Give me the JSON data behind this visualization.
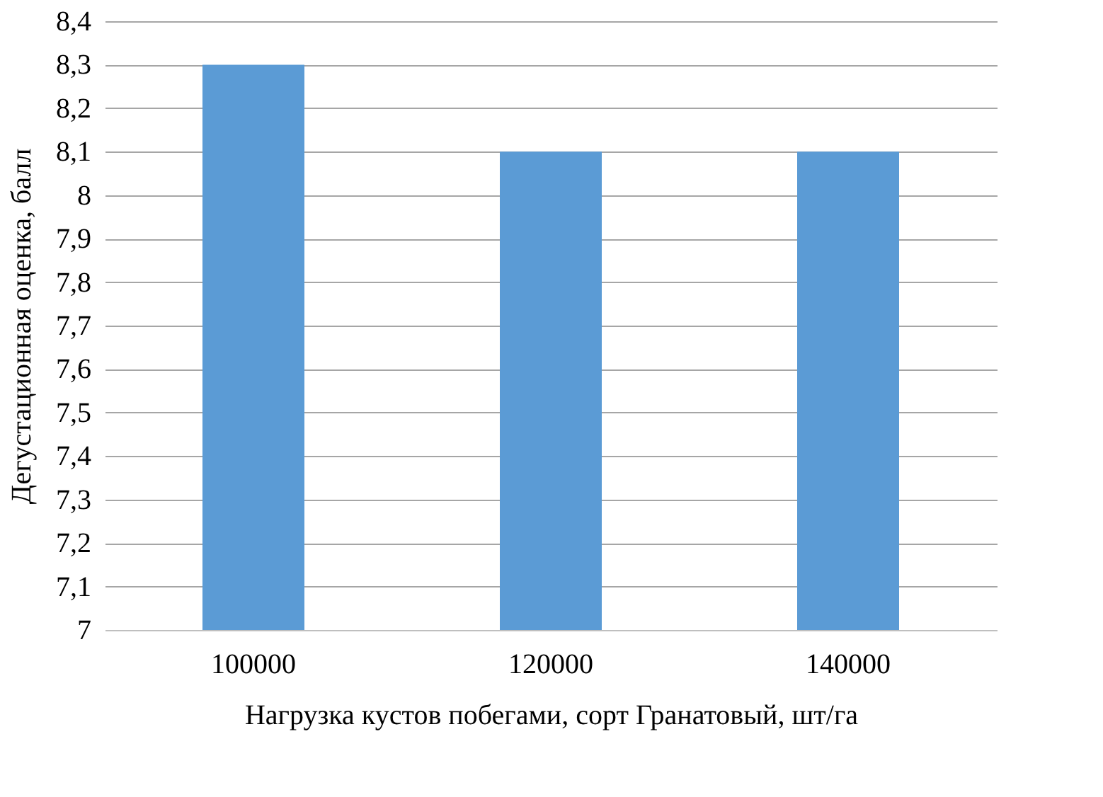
{
  "chart_data": {
    "type": "bar",
    "xlabel": "Нагрузка кустов побегами, сорт Гранатовый, шт/га",
    "ylabel": "Дегустационная оценка, балл",
    "categories": [
      "100000",
      "120000",
      "140000"
    ],
    "values": [
      8.3,
      8.1,
      8.1
    ],
    "color": "#5b9bd5",
    "ylim": [
      7,
      8.4
    ],
    "yticks": [
      7,
      {
        "value": 7.1,
        "label": "7,1"
      },
      {
        "value": 7.2,
        "label": "7,2"
      },
      {
        "value": 7.3,
        "label": "7,3"
      },
      {
        "value": 7.4,
        "label": "7,4"
      },
      {
        "value": 7.5,
        "label": "7,5"
      },
      {
        "value": 7.6,
        "label": "7,6"
      },
      {
        "value": 7.7,
        "label": "7,7"
      },
      {
        "value": 7.8,
        "label": "7,8"
      },
      {
        "value": 7.9,
        "label": "7,9"
      },
      8,
      {
        "value": 8.1,
        "label": "8,1"
      },
      {
        "value": 8.2,
        "label": "8,2"
      },
      {
        "value": 8.3,
        "label": "8,3"
      },
      {
        "value": 8.4,
        "label": "8,4"
      }
    ],
    "grid": "y"
  }
}
